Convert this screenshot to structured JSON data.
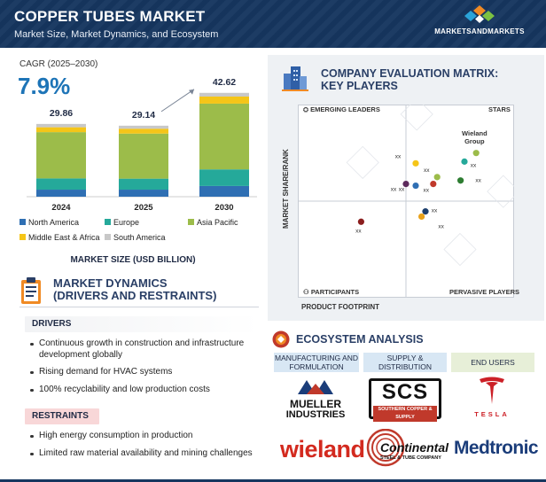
{
  "header": {
    "title": "COPPER TUBES MARKET",
    "subtitle": "Market Size, Market Dynamics, and Ecosystem",
    "brand": "MARKETSANDMARKETS",
    "colors": {
      "background": "#16365f"
    }
  },
  "cagr": {
    "label": "CAGR (2025–2030)",
    "value": "7.9%"
  },
  "chart_data": {
    "type": "bar",
    "stacked": true,
    "categories": [
      "2024",
      "2025",
      "2030"
    ],
    "totals": [
      "29.86",
      "29.14",
      "42.62"
    ],
    "series": [
      {
        "name": "North America",
        "color": "#2f6fb3",
        "values": [
          2.9,
          2.9,
          4.4
        ]
      },
      {
        "name": "Europe",
        "color": "#25a99a",
        "values": [
          4.6,
          4.5,
          6.8
        ]
      },
      {
        "name": "Asia Pacific",
        "color": "#9cbc4a",
        "values": [
          19.0,
          18.5,
          27.0
        ]
      },
      {
        "name": "Middle East & Africa",
        "color": "#f5c518",
        "values": [
          2.0,
          2.0,
          2.9
        ]
      },
      {
        "name": "South America",
        "color": "#c8c8c8",
        "values": [
          1.36,
          1.24,
          1.52
        ]
      }
    ],
    "xlabel": "MARKET SIZE (USD BILLION)",
    "ylim": [
      0,
      45
    ],
    "legend_position": "bottom",
    "trend_arrow": true
  },
  "dynamics": {
    "title_line1": "MARKET DYNAMICS",
    "title_line2": "(DRIVERS AND RESTRAINTS)",
    "drivers_label": "DRIVERS",
    "drivers": [
      "Continuous growth in construction and infrastructure development globally",
      "Rising demand for HVAC systems",
      "100% recyclability and low production costs"
    ],
    "restraints_label": "RESTRAINTS",
    "restraints": [
      "High energy consumption in production",
      "Limited raw material availability and mining challenges"
    ]
  },
  "matrix": {
    "title_line1": "COMPANY EVALUATION MATRIX:",
    "title_line2": "KEY PLAYERS",
    "quadrants": {
      "top_left": "EMERGING LEADERS",
      "top_right": "STARS",
      "bottom_left": "PARTICIPANTS",
      "bottom_right": "PERVASIVE PLAYERS"
    },
    "y_axis": "MARKET SHARE/RANK",
    "x_axis": "PRODUCT FOOTPRINT",
    "highlight": {
      "line1": "Wieland",
      "line2": "Group"
    },
    "players": [
      {
        "label": "",
        "color": "#9cbc4a",
        "x": 0.86,
        "y": 0.78
      },
      {
        "label": "xx",
        "color": "#25a99a",
        "x": 0.8,
        "y": 0.73
      },
      {
        "label": "xx",
        "color": "#f5c518",
        "x": 0.55,
        "y": 0.72
      },
      {
        "label": "xx",
        "color": "#9cbc4a",
        "x": 0.66,
        "y": 0.64
      },
      {
        "label": "xx",
        "color": "#5d2a5c",
        "x": 0.5,
        "y": 0.6
      },
      {
        "label": "xx",
        "color": "#2f6fb3",
        "x": 0.55,
        "y": 0.59
      },
      {
        "label": "xx",
        "color": "#c0392b",
        "x": 0.64,
        "y": 0.6
      },
      {
        "label": "xx",
        "color": "#2e7d32",
        "x": 0.78,
        "y": 0.62
      },
      {
        "label": "xx",
        "color": "#1d3f6e",
        "x": 0.6,
        "y": 0.44
      },
      {
        "label": "xx",
        "color": "#e9a21b",
        "x": 0.58,
        "y": 0.41
      },
      {
        "label": "xx",
        "color": "#8b1e1e",
        "x": 0.27,
        "y": 0.38
      }
    ]
  },
  "ecosystem": {
    "title": "ECOSYSTEM ANALYSIS",
    "heads": [
      "MANUFACTURING AND FORMULATION",
      "SUPPLY & DISTRIBUTION",
      "END USERS"
    ],
    "logos": {
      "mueller_line1": "MUELLER",
      "mueller_line2": "INDUSTRIES",
      "scs": "SCS",
      "scs_sub": "SOUTHERN COPPER & SUPPLY",
      "tesla": "TESLA",
      "wieland": "wieland",
      "continental": "Continental",
      "continental_sub": "STEEL & TUBE COMPANY",
      "medtronic": "Medtronic"
    }
  }
}
